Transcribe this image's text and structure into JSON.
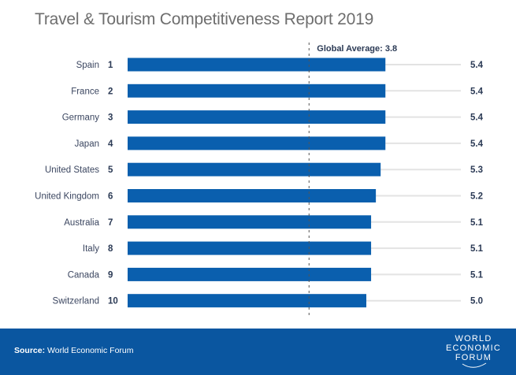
{
  "chart_data": {
    "type": "bar",
    "orientation": "horizontal",
    "title": "Travel & Tourism Competitiveness Report 2019",
    "categories": [
      "Spain",
      "France",
      "Germany",
      "Japan",
      "United States",
      "United Kingdom",
      "Australia",
      "Italy",
      "Canada",
      "Switzerland"
    ],
    "ranks": [
      "1",
      "2",
      "3",
      "4",
      "5",
      "6",
      "7",
      "8",
      "9",
      "10"
    ],
    "values": [
      5.4,
      5.4,
      5.4,
      5.4,
      5.3,
      5.2,
      5.1,
      5.1,
      5.1,
      5.0
    ],
    "value_labels": [
      "5.4",
      "5.4",
      "5.4",
      "5.4",
      "5.3",
      "5.2",
      "5.1",
      "5.1",
      "5.1",
      "5.0"
    ],
    "reference_line": {
      "value": 3.8,
      "label": "Global Average: 3.8"
    },
    "xlim": [
      0,
      7
    ],
    "xlabel": "",
    "ylabel": "",
    "grid": false,
    "legend": "none",
    "colors": {
      "bar": "#0a5fae",
      "track": "#e3e3e3",
      "label": "#2b3a55",
      "reference": "#555555"
    }
  },
  "footer": {
    "source_label": "Source:",
    "source_text": " World Economic Forum",
    "logo_lines": [
      "WORLD",
      "ECONOMIC",
      "FORUM"
    ],
    "background": "#0a56a0"
  }
}
